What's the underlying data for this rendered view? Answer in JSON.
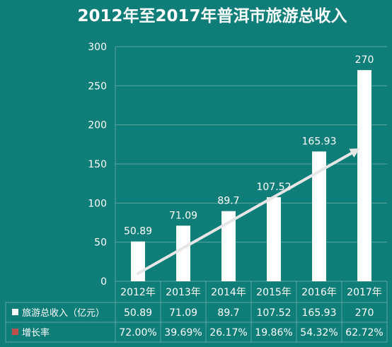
{
  "colors": {
    "background": "#0f7d78",
    "bar": "#ffffff",
    "grid": "#5aa6a1",
    "growth_marker": "#c0504d",
    "arrow": "#e6e6e6"
  },
  "chart_data": {
    "type": "bar",
    "title": "2012年至2017年普洱市旅游总收入",
    "categories": [
      "2012年",
      "2013年",
      "2014年",
      "2015年",
      "2016年",
      "2017年"
    ],
    "series": [
      {
        "name": "旅游总收入（亿元）",
        "values": [
          50.89,
          71.09,
          89.7,
          107.52,
          165.93,
          270
        ],
        "value_labels": [
          "50.89",
          "71.09",
          "89.7",
          "107.52",
          "165.93",
          "270"
        ],
        "table_labels": [
          "50.89",
          "71.09",
          "89.7",
          "107.52",
          "165.93",
          "270"
        ]
      },
      {
        "name": "增长率",
        "values": [
          "72.00%",
          "39.69%",
          "26.17%",
          "19.86%",
          "54.32%",
          "62.72%"
        ]
      }
    ],
    "ylim": [
      0,
      300
    ],
    "yticks": [
      "0",
      "50",
      "100",
      "150",
      "200",
      "250",
      "300"
    ],
    "grid": true,
    "data_table": true,
    "trend_arrow": true
  }
}
